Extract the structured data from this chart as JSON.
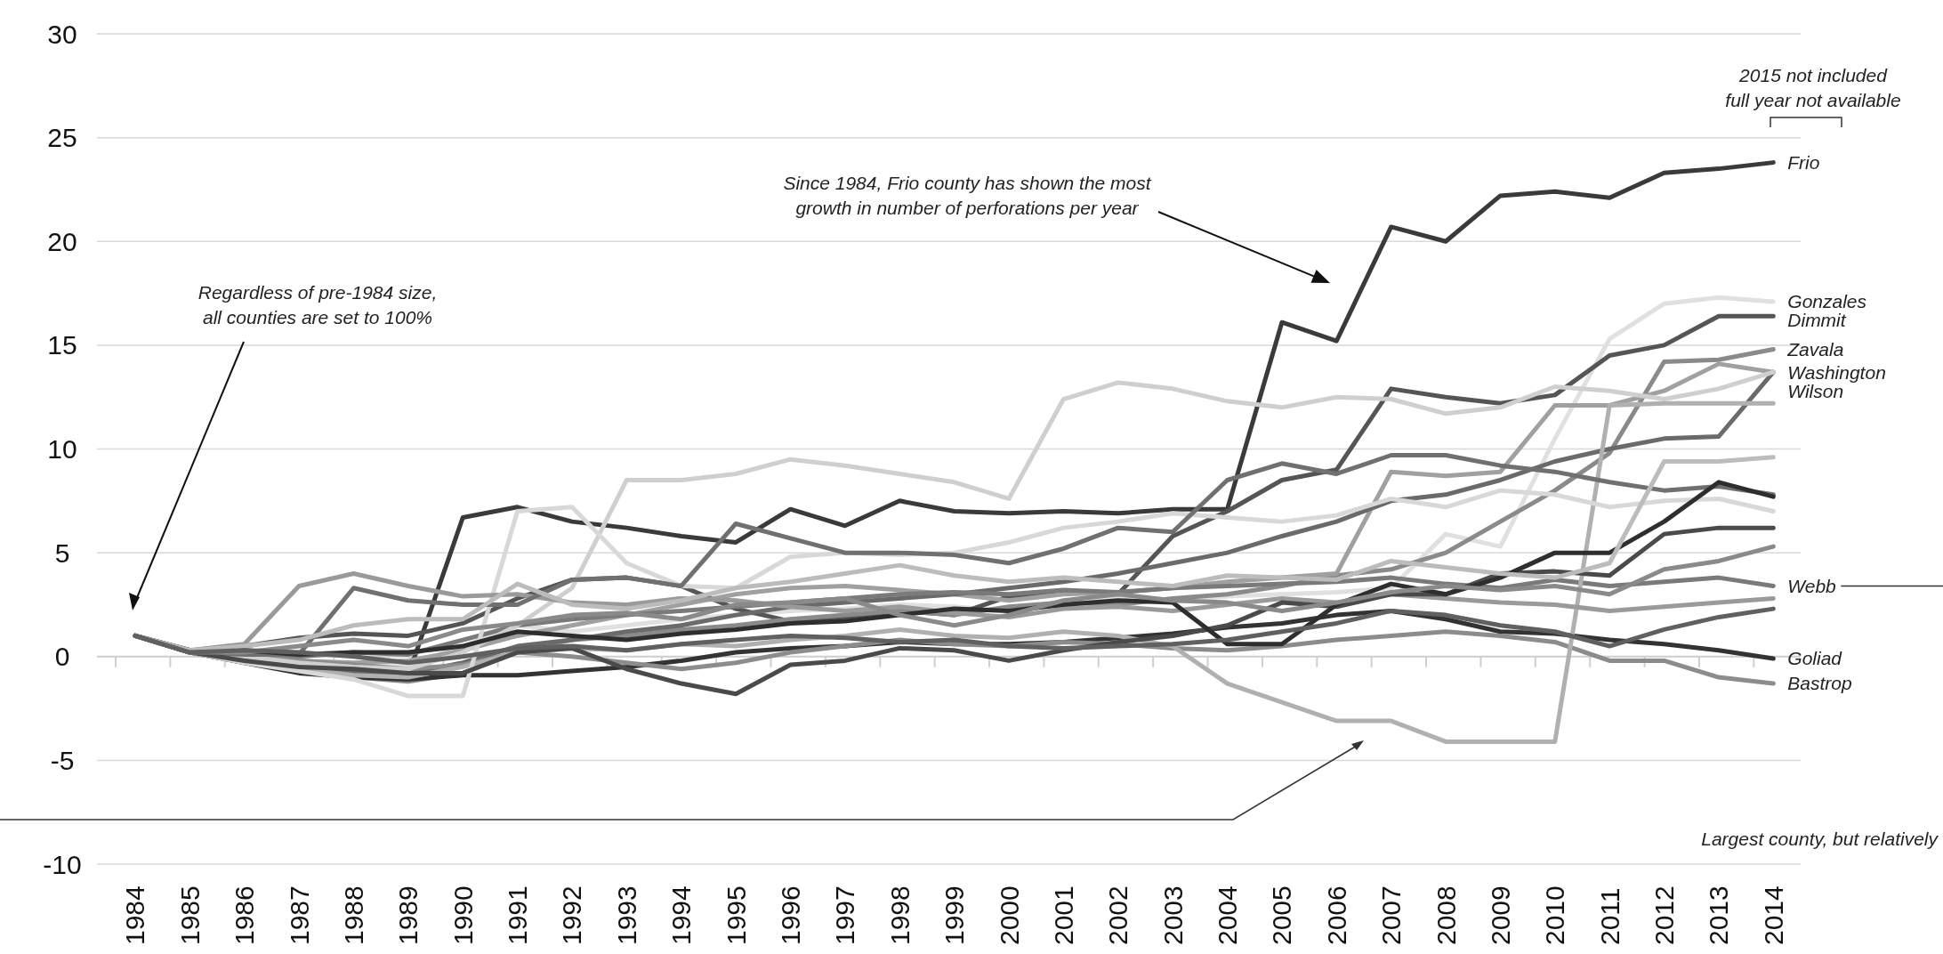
{
  "chart_data": {
    "type": "line",
    "x": [
      1984,
      1985,
      1986,
      1987,
      1988,
      1989,
      1990,
      1991,
      1992,
      1993,
      1994,
      1995,
      1996,
      1997,
      1998,
      1999,
      2000,
      2001,
      2002,
      2003,
      2004,
      2005,
      2006,
      2007,
      2008,
      2009,
      2010,
      2011,
      2012,
      2013,
      2014
    ],
    "xlim": [
      1983.3,
      2014.5
    ],
    "xticks": [
      1984,
      1985,
      1986,
      1987,
      1988,
      1989,
      1990,
      1991,
      1992,
      1993,
      1994,
      1995,
      1996,
      1997,
      1998,
      1999,
      2000,
      2001,
      2002,
      2003,
      2004,
      2005,
      2006,
      2007,
      2008,
      2009,
      2010,
      2011,
      2012,
      2013,
      2014
    ],
    "ylim": [
      -10,
      30
    ],
    "yticks": [
      -10,
      -5,
      0,
      5,
      10,
      15,
      20,
      25,
      30
    ],
    "grid": "y",
    "series": [
      {
        "name": "Frio",
        "color": "#3a3a3a",
        "values": [
          1,
          0.3,
          0,
          -0.5,
          -0.8,
          -0.9,
          6.7,
          7.2,
          6.5,
          6.2,
          5.8,
          5.5,
          7.1,
          6.3,
          7.5,
          7.0,
          6.9,
          7.0,
          6.9,
          7.1,
          7.1,
          16.1,
          15.2,
          20.7,
          20.0,
          22.2,
          22.4,
          22.1,
          23.3,
          23.5,
          23.8
        ]
      },
      {
        "name": "Gonzales",
        "color": "#e0e0e0",
        "values": [
          1,
          0.3,
          0,
          -0.3,
          -0.5,
          -0.4,
          0.5,
          1.5,
          1.2,
          1.5,
          1.8,
          2.0,
          2.2,
          2.3,
          2.5,
          2.4,
          2.2,
          2.6,
          2.8,
          2.7,
          2.9,
          3.0,
          3.1,
          3.3,
          5.9,
          5.3,
          10.5,
          15.3,
          17.0,
          17.3,
          17.1
        ]
      },
      {
        "name": "Dimmit",
        "color": "#555555",
        "values": [
          1,
          0.2,
          0.5,
          0.9,
          1.1,
          1.0,
          1.6,
          2.8,
          3.7,
          3.8,
          3.4,
          2.3,
          1.7,
          1.9,
          2.2,
          2.0,
          2.9,
          3.1,
          3.0,
          5.8,
          7.0,
          8.5,
          9.0,
          12.9,
          12.5,
          12.2,
          12.6,
          14.5,
          15.0,
          16.4,
          16.4
        ]
      },
      {
        "name": "Zavala",
        "color": "#8a8a8a",
        "values": [
          1,
          0.2,
          -0.3,
          -0.7,
          -1.0,
          -1.2,
          -0.8,
          0.3,
          0.8,
          1.0,
          1.3,
          1.5,
          1.8,
          2.0,
          2.2,
          2.0,
          2.4,
          2.6,
          2.5,
          2.8,
          3.0,
          3.4,
          3.9,
          4.2,
          5.0,
          6.5,
          8.0,
          9.8,
          14.2,
          14.3,
          14.8
        ]
      },
      {
        "name": "Washington",
        "color": "#a0a0a0",
        "values": [
          1,
          0.3,
          0.1,
          -0.2,
          -0.3,
          -0.2,
          0.3,
          1.0,
          1.5,
          2.0,
          2.5,
          3.0,
          3.3,
          3.4,
          3.2,
          3.0,
          2.7,
          3.0,
          3.1,
          3.3,
          3.6,
          3.8,
          4.0,
          8.9,
          8.7,
          8.9,
          12.1,
          12.1,
          12.8,
          14.1,
          13.7
        ]
      },
      {
        "name": "Wilson",
        "color": "#6a6a6a",
        "values": [
          1,
          0.2,
          -0.2,
          -0.6,
          -0.8,
          -0.8,
          -0.3,
          0.5,
          0.8,
          1.2,
          1.5,
          2.0,
          2.4,
          2.6,
          2.8,
          3.0,
          3.3,
          3.6,
          4.0,
          4.5,
          5.0,
          5.8,
          6.5,
          7.5,
          7.8,
          8.5,
          9.4,
          10.0,
          10.5,
          10.6,
          13.7
        ]
      },
      {
        "name": "Webb",
        "color": "#7a7a7a",
        "values": [
          1,
          0.3,
          0.2,
          0,
          0.2,
          0.1,
          0.8,
          1.5,
          1.8,
          2.0,
          2.2,
          2.4,
          2.6,
          2.8,
          3.0,
          3.1,
          3.0,
          3.2,
          3.1,
          3.3,
          3.4,
          3.5,
          3.6,
          3.8,
          3.5,
          3.3,
          3.7,
          3.4,
          3.6,
          3.8,
          3.4
        ]
      },
      {
        "name": "Goliad",
        "color": "#333333",
        "values": [
          1,
          0.2,
          -0.3,
          -0.8,
          -1.0,
          -1.1,
          -0.9,
          -0.9,
          -0.7,
          -0.5,
          -0.2,
          0.2,
          0.4,
          0.5,
          0.7,
          0.6,
          0.6,
          0.7,
          0.9,
          1.1,
          1.4,
          1.6,
          2.0,
          2.2,
          1.8,
          1.2,
          1.1,
          0.8,
          0.6,
          0.3,
          -0.1
        ]
      },
      {
        "name": "Bastrop",
        "color": "#8c8c8c",
        "values": [
          1,
          0.3,
          0.1,
          -0.2,
          -0.4,
          -0.6,
          -0.4,
          0.2,
          0.0,
          -0.3,
          -0.6,
          -0.3,
          0.2,
          0.5,
          0.8,
          0.6,
          0.5,
          0.7,
          0.6,
          0.4,
          0.3,
          0.5,
          0.8,
          1.0,
          1.2,
          1.0,
          0.7,
          -0.2,
          -0.2,
          -1.0,
          -1.3
        ]
      },
      {
        "color": "#cfcfcf",
        "values": [
          1,
          0.3,
          0,
          -0.3,
          -0.5,
          -0.6,
          0.2,
          1.5,
          3.3,
          8.5,
          8.5,
          8.8,
          9.5,
          9.2,
          8.8,
          8.4,
          7.6,
          12.4,
          13.2,
          12.9,
          12.3,
          12.0,
          12.5,
          12.4,
          11.7,
          12.0,
          13.0,
          12.8,
          12.4,
          12.9,
          13.7
        ]
      },
      {
        "color": "#b0b0b0",
        "values": [
          1,
          0.2,
          -0.2,
          -0.6,
          -0.9,
          -1.0,
          -0.5,
          0.2,
          0.4,
          0.3,
          0.6,
          0.5,
          0.8,
          1.0,
          1.3,
          1.0,
          0.9,
          1.2,
          1.0,
          0.5,
          -1.3,
          -2.2,
          -3.1,
          -3.1,
          -4.1,
          -4.1,
          -4.1,
          12.1,
          12.2,
          12.2,
          12.2
        ]
      },
      {
        "color": "#d8d8d8",
        "values": [
          1,
          0.2,
          -0.3,
          -0.7,
          -1.1,
          -1.9,
          -1.9,
          7.0,
          7.2,
          4.5,
          3.4,
          3.3,
          4.8,
          5.0,
          4.9,
          5.0,
          5.5,
          6.2,
          6.5,
          6.9,
          6.7,
          6.5,
          6.8,
          7.6,
          7.2,
          8.0,
          7.8,
          7.2,
          7.5,
          7.6,
          7.0
        ]
      },
      {
        "color": "#9a9a9a",
        "values": [
          1,
          0.3,
          0.6,
          3.4,
          4.0,
          3.4,
          2.9,
          3.0,
          2.6,
          2.5,
          2.8,
          2.7,
          2.4,
          2.2,
          2.4,
          2.1,
          1.9,
          2.3,
          2.4,
          2.2,
          2.5,
          2.8,
          2.6,
          3.0,
          2.8,
          2.6,
          2.5,
          2.2,
          2.4,
          2.6,
          2.8
        ]
      },
      {
        "color": "#707070",
        "values": [
          1,
          0.2,
          0.1,
          0.1,
          3.3,
          2.7,
          2.5,
          2.5,
          3.7,
          3.8,
          3.4,
          6.4,
          5.7,
          5.0,
          5.0,
          4.9,
          4.5,
          5.2,
          6.2,
          6.0,
          8.5,
          9.3,
          8.8,
          9.7,
          9.7,
          9.2,
          8.9,
          8.4,
          8.0,
          8.2,
          7.8
        ]
      },
      {
        "color": "#4a4a4a",
        "values": [
          1,
          0.2,
          -0.2,
          -0.5,
          -0.6,
          -0.8,
          -0.8,
          0.2,
          0.4,
          -0.6,
          -1.3,
          -1.8,
          -0.4,
          -0.2,
          0.4,
          0.3,
          -0.2,
          0.3,
          0.7,
          1.0,
          1.5,
          2.6,
          2.4,
          3.0,
          3.0,
          4.0,
          4.1,
          3.9,
          5.9,
          6.2,
          6.2
        ]
      },
      {
        "color": "#2e2e2e",
        "values": [
          1,
          0.3,
          0.3,
          0.1,
          0.2,
          0.2,
          0.5,
          1.2,
          1.0,
          0.8,
          1.1,
          1.3,
          1.6,
          1.7,
          2.0,
          2.3,
          2.2,
          2.5,
          2.7,
          2.6,
          0.6,
          0.6,
          2.5,
          3.5,
          3.0,
          3.8,
          5.0,
          5.0,
          6.5,
          8.4,
          7.7
        ]
      },
      {
        "color": "#bcbcbc",
        "values": [
          1,
          0.3,
          0.5,
          0.8,
          1.5,
          1.8,
          1.8,
          3.5,
          2.5,
          2.3,
          2.7,
          3.3,
          3.6,
          4.0,
          4.4,
          3.9,
          3.6,
          3.8,
          3.6,
          3.4,
          3.9,
          3.8,
          3.7,
          4.6,
          4.3,
          4.0,
          3.8,
          4.5,
          9.4,
          9.4,
          9.6
        ]
      },
      {
        "color": "#8a8a8a",
        "values": [
          1,
          0.2,
          0.2,
          0.5,
          0.8,
          0.5,
          1.3,
          1.6,
          2.0,
          2.1,
          1.8,
          2.5,
          2.6,
          2.8,
          2.0,
          1.5,
          2.0,
          2.7,
          3.0,
          2.7,
          2.6,
          2.2,
          2.6,
          3.1,
          3.4,
          3.2,
          3.4,
          3.0,
          4.2,
          4.6,
          5.3
        ]
      },
      {
        "color": "#606060",
        "values": [
          1,
          0.2,
          0.3,
          0.2,
          0.0,
          -0.3,
          0.0,
          0.4,
          0.5,
          0.3,
          0.6,
          0.8,
          1.0,
          0.9,
          0.7,
          0.8,
          0.5,
          0.4,
          0.5,
          0.6,
          0.8,
          1.2,
          1.6,
          2.2,
          2.0,
          1.5,
          1.2,
          0.5,
          1.3,
          1.9,
          2.3
        ]
      }
    ],
    "annotations": [
      "Regardless of pre-1984 size,\nall counties are set to 100%",
      "Since 1984, Frio county has shown the most\ngrowth in number of perforations per year",
      "Largest county, but relatively",
      "2015 not included\nfull year not available"
    ]
  }
}
